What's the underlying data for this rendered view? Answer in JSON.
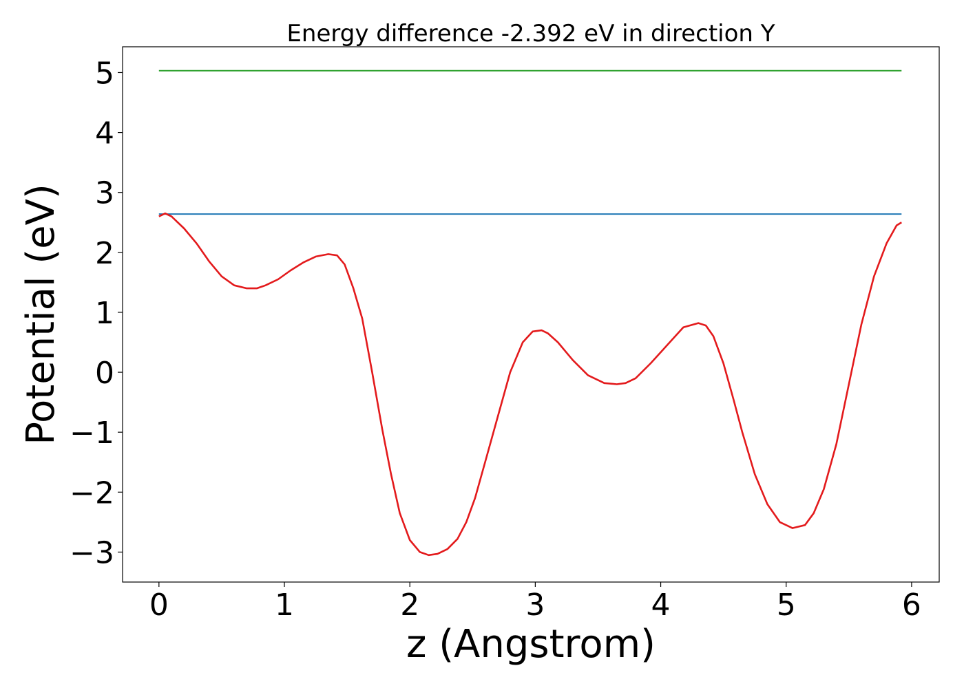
{
  "chart_data": {
    "type": "line",
    "title": "Energy difference -2.392 eV in direction Y",
    "xlabel": "z (Angstrom)",
    "ylabel": "Potential (eV)",
    "xlim": [
      -0.29,
      6.22
    ],
    "ylim": [
      -3.5,
      5.43
    ],
    "xticks": [
      0,
      1,
      2,
      3,
      4,
      5,
      6
    ],
    "xtick_labels": [
      "0",
      "1",
      "2",
      "3",
      "4",
      "5",
      "6"
    ],
    "yticks": [
      -3,
      -2,
      -1,
      0,
      1,
      2,
      3,
      4,
      5
    ],
    "ytick_labels": [
      "−3",
      "−2",
      "−1",
      "0",
      "1",
      "2",
      "3",
      "4",
      "5"
    ],
    "grid": false,
    "series": [
      {
        "color": "#2ca02c",
        "x": [
          0,
          5.92
        ],
        "y": [
          5.03,
          5.03
        ]
      },
      {
        "color": "#1f77b4",
        "x": [
          0,
          5.92
        ],
        "y": [
          2.64,
          2.64
        ]
      },
      {
        "color": "#e31a1c",
        "x": [
          0,
          0.05,
          0.1,
          0.2,
          0.3,
          0.4,
          0.5,
          0.6,
          0.7,
          0.78,
          0.85,
          0.95,
          1.05,
          1.15,
          1.25,
          1.35,
          1.42,
          1.48,
          1.55,
          1.62,
          1.7,
          1.78,
          1.85,
          1.92,
          2.0,
          2.08,
          2.15,
          2.22,
          2.3,
          2.38,
          2.45,
          2.52,
          2.6,
          2.7,
          2.8,
          2.9,
          2.98,
          3.05,
          3.1,
          3.18,
          3.3,
          3.42,
          3.55,
          3.65,
          3.72,
          3.8,
          3.92,
          4.05,
          4.18,
          4.3,
          4.36,
          4.42,
          4.5,
          4.58,
          4.65,
          4.75,
          4.85,
          4.95,
          5.05,
          5.15,
          5.22,
          5.3,
          5.4,
          5.5,
          5.6,
          5.7,
          5.8,
          5.88,
          5.92
        ],
        "y": [
          2.6,
          2.65,
          2.6,
          2.4,
          2.15,
          1.85,
          1.6,
          1.45,
          1.4,
          1.4,
          1.45,
          1.55,
          1.7,
          1.83,
          1.93,
          1.97,
          1.95,
          1.8,
          1.4,
          0.9,
          0.0,
          -0.95,
          -1.7,
          -2.35,
          -2.8,
          -3.0,
          -3.05,
          -3.03,
          -2.95,
          -2.78,
          -2.5,
          -2.1,
          -1.5,
          -0.75,
          0.0,
          0.5,
          0.68,
          0.7,
          0.65,
          0.5,
          0.2,
          -0.05,
          -0.18,
          -0.2,
          -0.18,
          -0.1,
          0.15,
          0.45,
          0.75,
          0.82,
          0.78,
          0.6,
          0.15,
          -0.45,
          -1.0,
          -1.7,
          -2.2,
          -2.5,
          -2.6,
          -2.55,
          -2.35,
          -1.95,
          -1.2,
          -0.2,
          0.8,
          1.6,
          2.15,
          2.45,
          2.5
        ]
      }
    ]
  }
}
